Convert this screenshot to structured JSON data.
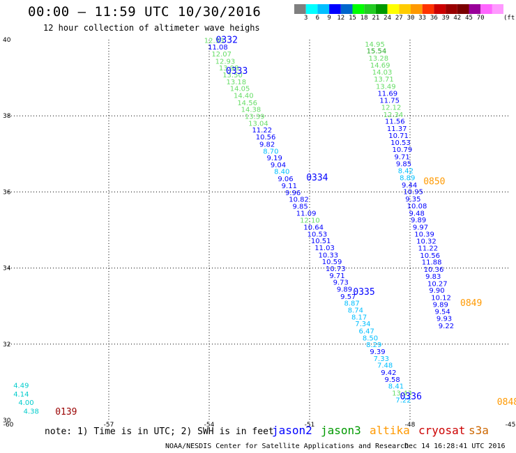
{
  "title": "00:00 – 11:59 UTC 10/30/2016",
  "subtitle": "12 hour collection of altimeter wave heighs",
  "legend": {
    "colors": [
      "#7f7f7f",
      "#00ffff",
      "#00bfff",
      "#0000ff",
      "#0066cc",
      "#00ff00",
      "#22cc22",
      "#009900",
      "#ffff00",
      "#ffcc00",
      "#ff9900",
      "#ff3300",
      "#cc0000",
      "#990000",
      "#7a0000",
      "#990099",
      "#ff66ff",
      "#ff99ff"
    ],
    "labels": [
      "3",
      "6",
      "9",
      "12",
      "15",
      "18",
      "21",
      "24",
      "27",
      "30",
      "33",
      "36",
      "39",
      "42",
      "45",
      "70"
    ],
    "unit": "(ft)"
  },
  "note": "note: 1) Time is in UTC; 2) SWH is in feet",
  "satellites": [
    {
      "name": "jason2",
      "color": "#0000ff"
    },
    {
      "name": "jason3",
      "color": "#009900"
    },
    {
      "name": "altika",
      "color": "#ff9900"
    },
    {
      "name": "cryosat",
      "color": "#cc0000"
    },
    {
      "name": "s3a",
      "color": "#cc6600"
    }
  ],
  "footer_left": "NOAA/NESDIS Center for Satellite Applications and Research",
  "footer_right": "Dec 14 16:28:41 UTC 2016",
  "chart_data": {
    "type": "scatter",
    "xlim": [
      -60,
      -45
    ],
    "ylim": [
      30,
      40
    ],
    "x_ticks": [
      -60,
      -57,
      -54,
      -51,
      -48,
      -45
    ],
    "y_ticks": [
      30,
      32,
      34,
      36,
      38,
      40
    ],
    "grid": true,
    "tracks": [
      {
        "name": "track-0332-0336",
        "labels": [
          {
            "text": "0332",
            "lon": -53.8,
            "lat": 39.92,
            "color": "#0000ff"
          },
          {
            "text": "0333",
            "lon": -53.5,
            "lat": 39.1,
            "color": "#0000ff"
          },
          {
            "text": "0334",
            "lon": -51.1,
            "lat": 36.3,
            "color": "#0000ff"
          },
          {
            "text": "0335",
            "lon": -49.7,
            "lat": 33.3,
            "color": "#0000ff"
          },
          {
            "text": "0336",
            "lon": -48.3,
            "lat": 30.55,
            "color": "#0000ff"
          }
        ],
        "points": [
          {
            "v": "12.53",
            "lon": -54.15,
            "lat": 39.92,
            "color": "#66dd66"
          },
          {
            "v": "11.08",
            "lon": -54.04,
            "lat": 39.74,
            "color": "#0000ff"
          },
          {
            "v": "12.07",
            "lon": -53.93,
            "lat": 39.56,
            "color": "#66dd66"
          },
          {
            "v": "12.93",
            "lon": -53.82,
            "lat": 39.37,
            "color": "#66dd66"
          },
          {
            "v": "13.98",
            "lon": -53.71,
            "lat": 39.19,
            "color": "#66dd66"
          },
          {
            "v": "13.50",
            "lon": -53.6,
            "lat": 39.01,
            "color": "#66dd66"
          },
          {
            "v": "13.18",
            "lon": -53.49,
            "lat": 38.83,
            "color": "#66dd66"
          },
          {
            "v": "14.05",
            "lon": -53.38,
            "lat": 38.65,
            "color": "#66dd66"
          },
          {
            "v": "14.40",
            "lon": -53.27,
            "lat": 38.47,
            "color": "#66dd66"
          },
          {
            "v": "14.56",
            "lon": -53.16,
            "lat": 38.28,
            "color": "#66dd66"
          },
          {
            "v": "14.38",
            "lon": -53.05,
            "lat": 38.1,
            "color": "#66dd66"
          },
          {
            "v": "13.39",
            "lon": -52.94,
            "lat": 37.92,
            "color": "#66dd66"
          },
          {
            "v": "13.04",
            "lon": -52.83,
            "lat": 37.74,
            "color": "#66dd66"
          },
          {
            "v": "11.22",
            "lon": -52.72,
            "lat": 37.56,
            "color": "#0000ff"
          },
          {
            "v": "10.56",
            "lon": -52.61,
            "lat": 37.38,
            "color": "#0000ff"
          },
          {
            "v": "9.82",
            "lon": -52.5,
            "lat": 37.19,
            "color": "#0000ff"
          },
          {
            "v": "8.70",
            "lon": -52.39,
            "lat": 37.01,
            "color": "#00bfff"
          },
          {
            "v": "9.19",
            "lon": -52.28,
            "lat": 36.83,
            "color": "#0000ff"
          },
          {
            "v": "9.04",
            "lon": -52.17,
            "lat": 36.65,
            "color": "#0000ff"
          },
          {
            "v": "8.40",
            "lon": -52.06,
            "lat": 36.47,
            "color": "#00bfff"
          },
          {
            "v": "9.06",
            "lon": -51.95,
            "lat": 36.28,
            "color": "#0000ff"
          },
          {
            "v": "9.11",
            "lon": -51.84,
            "lat": 36.1,
            "color": "#0000ff"
          },
          {
            "v": "9.96",
            "lon": -51.73,
            "lat": 35.92,
            "color": "#0000ff"
          },
          {
            "v": "10.82",
            "lon": -51.62,
            "lat": 35.74,
            "color": "#0000ff"
          },
          {
            "v": "9.85",
            "lon": -51.51,
            "lat": 35.56,
            "color": "#0000ff"
          },
          {
            "v": "11.09",
            "lon": -51.4,
            "lat": 35.38,
            "color": "#0000ff"
          },
          {
            "v": "12.10",
            "lon": -51.29,
            "lat": 35.19,
            "color": "#66dd66"
          },
          {
            "v": "10.64",
            "lon": -51.18,
            "lat": 35.01,
            "color": "#0000ff"
          },
          {
            "v": "10.53",
            "lon": -51.07,
            "lat": 34.83,
            "color": "#0000ff"
          },
          {
            "v": "10.51",
            "lon": -50.96,
            "lat": 34.65,
            "color": "#0000ff"
          },
          {
            "v": "11.03",
            "lon": -50.85,
            "lat": 34.47,
            "color": "#0000ff"
          },
          {
            "v": "10.33",
            "lon": -50.74,
            "lat": 34.28,
            "color": "#0000ff"
          },
          {
            "v": "10.59",
            "lon": -50.63,
            "lat": 34.1,
            "color": "#0000ff"
          },
          {
            "v": "10.73",
            "lon": -50.52,
            "lat": 33.92,
            "color": "#0000ff"
          },
          {
            "v": "9.71",
            "lon": -50.41,
            "lat": 33.74,
            "color": "#0000ff"
          },
          {
            "v": "9.73",
            "lon": -50.3,
            "lat": 33.56,
            "color": "#0000ff"
          },
          {
            "v": "9.89",
            "lon": -50.19,
            "lat": 33.38,
            "color": "#0000ff"
          },
          {
            "v": "9.57",
            "lon": -50.08,
            "lat": 33.19,
            "color": "#0000ff"
          },
          {
            "v": "8.87",
            "lon": -49.97,
            "lat": 33.01,
            "color": "#00bfff"
          },
          {
            "v": "8.74",
            "lon": -49.86,
            "lat": 32.83,
            "color": "#00bfff"
          },
          {
            "v": "8.17",
            "lon": -49.75,
            "lat": 32.65,
            "color": "#00bfff"
          },
          {
            "v": "7.34",
            "lon": -49.64,
            "lat": 32.47,
            "color": "#00bfff"
          },
          {
            "v": "6.47",
            "lon": -49.53,
            "lat": 32.28,
            "color": "#00bfff"
          },
          {
            "v": "8.50",
            "lon": -49.42,
            "lat": 32.1,
            "color": "#00bfff"
          },
          {
            "v": "8.29",
            "lon": -49.31,
            "lat": 31.92,
            "color": "#00bfff"
          },
          {
            "v": "9.39",
            "lon": -49.2,
            "lat": 31.74,
            "color": "#0000ff"
          },
          {
            "v": "7.33",
            "lon": -49.09,
            "lat": 31.56,
            "color": "#00bfff"
          },
          {
            "v": "7.48",
            "lon": -48.98,
            "lat": 31.38,
            "color": "#00bfff"
          },
          {
            "v": "9.42",
            "lon": -48.87,
            "lat": 31.19,
            "color": "#0000ff"
          },
          {
            "v": "9.58",
            "lon": -48.76,
            "lat": 31.01,
            "color": "#0000ff"
          },
          {
            "v": "8.41",
            "lon": -48.65,
            "lat": 30.83,
            "color": "#00bfff"
          },
          {
            "v": "13.43",
            "lon": -48.54,
            "lat": 30.65,
            "color": "#66dd66"
          },
          {
            "v": "7.22",
            "lon": -48.43,
            "lat": 30.47,
            "color": "#00bfff"
          }
        ]
      },
      {
        "name": "track-0848-0850",
        "labels": [
          {
            "text": "0850",
            "lon": -47.6,
            "lat": 36.2,
            "color": "#ff9900"
          },
          {
            "text": "0849",
            "lon": -46.5,
            "lat": 33.0,
            "color": "#ff9900"
          },
          {
            "text": "0848",
            "lon": -45.4,
            "lat": 30.4,
            "color": "#ff9900"
          }
        ],
        "points": [
          {
            "v": "14.95",
            "lon": -49.35,
            "lat": 39.82,
            "color": "#66dd66"
          },
          {
            "v": "15.54",
            "lon": -49.3,
            "lat": 39.64,
            "color": "#22aa22"
          },
          {
            "v": "13.28",
            "lon": -49.24,
            "lat": 39.45,
            "color": "#66dd66"
          },
          {
            "v": "14.69",
            "lon": -49.19,
            "lat": 39.27,
            "color": "#66dd66"
          },
          {
            "v": "14.03",
            "lon": -49.13,
            "lat": 39.08,
            "color": "#66dd66"
          },
          {
            "v": "13.71",
            "lon": -49.08,
            "lat": 38.9,
            "color": "#66dd66"
          },
          {
            "v": "13.49",
            "lon": -49.02,
            "lat": 38.71,
            "color": "#66dd66"
          },
          {
            "v": "11.69",
            "lon": -48.97,
            "lat": 38.53,
            "color": "#0000ff"
          },
          {
            "v": "11.75",
            "lon": -48.91,
            "lat": 38.34,
            "color": "#0000ff"
          },
          {
            "v": "12.12",
            "lon": -48.86,
            "lat": 38.16,
            "color": "#66dd66"
          },
          {
            "v": "12.34",
            "lon": -48.8,
            "lat": 37.97,
            "color": "#66dd66"
          },
          {
            "v": "11.56",
            "lon": -48.75,
            "lat": 37.79,
            "color": "#0000ff"
          },
          {
            "v": "11.37",
            "lon": -48.69,
            "lat": 37.6,
            "color": "#0000ff"
          },
          {
            "v": "10.71",
            "lon": -48.64,
            "lat": 37.42,
            "color": "#0000ff"
          },
          {
            "v": "10.53",
            "lon": -48.58,
            "lat": 37.23,
            "color": "#0000ff"
          },
          {
            "v": "10.79",
            "lon": -48.53,
            "lat": 37.05,
            "color": "#0000ff"
          },
          {
            "v": "9.71",
            "lon": -48.47,
            "lat": 36.86,
            "color": "#0000ff"
          },
          {
            "v": "9.85",
            "lon": -48.42,
            "lat": 36.68,
            "color": "#0000ff"
          },
          {
            "v": "8.42",
            "lon": -48.36,
            "lat": 36.49,
            "color": "#00bfff"
          },
          {
            "v": "8.89",
            "lon": -48.31,
            "lat": 36.31,
            "color": "#00bfff"
          },
          {
            "v": "9.44",
            "lon": -48.25,
            "lat": 36.12,
            "color": "#0000ff"
          },
          {
            "v": "10.95",
            "lon": -48.2,
            "lat": 35.94,
            "color": "#0000ff"
          },
          {
            "v": "9.35",
            "lon": -48.14,
            "lat": 35.75,
            "color": "#0000ff"
          },
          {
            "v": "10.08",
            "lon": -48.09,
            "lat": 35.57,
            "color": "#0000ff"
          },
          {
            "v": "9.48",
            "lon": -48.03,
            "lat": 35.38,
            "color": "#0000ff"
          },
          {
            "v": "9.89",
            "lon": -47.98,
            "lat": 35.2,
            "color": "#0000ff"
          },
          {
            "v": "9.97",
            "lon": -47.92,
            "lat": 35.01,
            "color": "#0000ff"
          },
          {
            "v": "10.39",
            "lon": -47.87,
            "lat": 34.83,
            "color": "#0000ff"
          },
          {
            "v": "10.32",
            "lon": -47.81,
            "lat": 34.64,
            "color": "#0000ff"
          },
          {
            "v": "11.22",
            "lon": -47.76,
            "lat": 34.46,
            "color": "#0000ff"
          },
          {
            "v": "10.56",
            "lon": -47.7,
            "lat": 34.27,
            "color": "#0000ff"
          },
          {
            "v": "11.88",
            "lon": -47.65,
            "lat": 34.09,
            "color": "#0000ff"
          },
          {
            "v": "10.36",
            "lon": -47.59,
            "lat": 33.9,
            "color": "#0000ff"
          },
          {
            "v": "9.83",
            "lon": -47.54,
            "lat": 33.72,
            "color": "#0000ff"
          },
          {
            "v": "10.27",
            "lon": -47.48,
            "lat": 33.53,
            "color": "#0000ff"
          },
          {
            "v": "9.90",
            "lon": -47.43,
            "lat": 33.35,
            "color": "#0000ff"
          },
          {
            "v": "10.12",
            "lon": -47.37,
            "lat": 33.16,
            "color": "#0000ff"
          },
          {
            "v": "9.89",
            "lon": -47.32,
            "lat": 32.98,
            "color": "#0000ff"
          },
          {
            "v": "9.54",
            "lon": -47.26,
            "lat": 32.79,
            "color": "#0000ff"
          },
          {
            "v": "9.93",
            "lon": -47.21,
            "lat": 32.61,
            "color": "#0000ff"
          },
          {
            "v": "9.22",
            "lon": -47.15,
            "lat": 32.42,
            "color": "#0000ff"
          }
        ]
      },
      {
        "name": "track-0139",
        "labels": [
          {
            "text": "0139",
            "lon": -58.6,
            "lat": 30.15,
            "color": "#990000"
          }
        ],
        "points": [
          {
            "v": "4.49",
            "lon": -59.85,
            "lat": 30.85,
            "color": "#00cccc"
          },
          {
            "v": "4.14",
            "lon": -59.85,
            "lat": 30.62,
            "color": "#00cccc"
          },
          {
            "v": "4.00",
            "lon": -59.7,
            "lat": 30.4,
            "color": "#00cccc"
          },
          {
            "v": "4.38",
            "lon": -59.55,
            "lat": 30.17,
            "color": "#00cccc"
          }
        ]
      }
    ]
  }
}
